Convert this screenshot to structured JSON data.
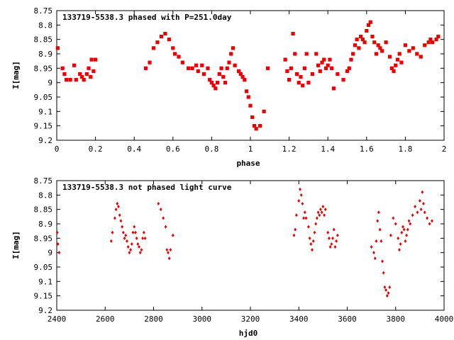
{
  "chart_data": [
    {
      "type": "scatter",
      "title": "133719-5538.3 phased with P=251.0day",
      "xlabel": "phase",
      "ylabel": "I[mag]",
      "xlim": [
        0,
        2
      ],
      "ylim": [
        8.75,
        9.2
      ],
      "y_inverted": true,
      "grid": false,
      "marker_color": "#ee0000",
      "x_ticks": [
        "0",
        "0.2",
        "0.4",
        "0.6",
        "0.8",
        "1",
        "1.2",
        "1.4",
        "1.6",
        "1.8",
        "2"
      ],
      "y_ticks": [
        "8.75",
        "8.8",
        "8.85",
        "8.9",
        "8.95",
        "9",
        "9.05",
        "9.1",
        "9.15",
        "9.2"
      ],
      "series": [
        {
          "x": [
            0.005,
            0.03,
            0.04,
            0.05,
            0.07,
            0.09,
            0.1,
            0.12,
            0.13,
            0.14,
            0.155,
            0.165,
            0.175,
            0.18,
            0.19,
            0.2,
            0.46,
            0.48,
            0.5,
            0.52,
            0.54,
            0.56,
            0.58,
            0.6,
            0.61,
            0.63,
            0.65,
            0.68,
            0.7,
            0.72,
            0.73,
            0.75,
            0.76,
            0.78,
            0.79,
            0.8,
            0.81,
            0.82,
            0.83,
            0.84,
            0.85,
            0.86,
            0.87,
            0.88,
            0.89,
            0.9,
            0.91,
            0.92,
            0.94,
            0.95,
            0.96,
            0.97,
            0.98,
            0.99,
            1.0,
            1.01,
            1.02,
            1.03,
            1.05,
            1.07,
            1.09,
            1.18,
            1.19,
            1.2,
            1.21,
            1.22,
            1.23,
            1.24,
            1.25,
            1.26,
            1.27,
            1.28,
            1.29,
            1.3,
            1.32,
            1.34,
            1.35,
            1.36,
            1.37,
            1.38,
            1.39,
            1.4,
            1.41,
            1.42,
            1.43,
            1.45,
            1.48,
            1.5,
            1.51,
            1.52,
            1.53,
            1.54,
            1.55,
            1.56,
            1.57,
            1.58,
            1.59,
            1.6,
            1.61,
            1.62,
            1.63,
            1.64,
            1.65,
            1.66,
            1.67,
            1.68,
            1.7,
            1.72,
            1.73,
            1.74,
            1.75,
            1.76,
            1.77,
            1.78,
            1.8,
            1.82,
            1.84,
            1.86,
            1.88,
            1.9,
            1.92,
            1.93,
            1.94,
            1.96,
            1.97
          ],
          "y": [
            8.88,
            8.95,
            8.97,
            8.99,
            8.99,
            8.94,
            8.99,
            8.97,
            8.98,
            8.99,
            8.97,
            8.95,
            8.98,
            8.92,
            8.96,
            8.92,
            8.95,
            8.93,
            8.88,
            8.86,
            8.84,
            8.83,
            8.85,
            8.88,
            8.9,
            8.91,
            8.93,
            8.95,
            8.95,
            8.94,
            8.96,
            8.94,
            8.97,
            8.95,
            8.99,
            9.0,
            9.01,
            9.02,
            9.0,
            8.97,
            8.95,
            8.98,
            9.0,
            8.95,
            8.93,
            8.9,
            8.88,
            8.94,
            8.96,
            8.97,
            8.98,
            8.99,
            9.03,
            9.05,
            9.08,
            9.12,
            9.15,
            9.16,
            9.15,
            9.1,
            8.95,
            8.92,
            8.96,
            8.99,
            8.95,
            8.83,
            8.9,
            8.97,
            9.0,
            8.98,
            9.01,
            8.95,
            8.9,
            9.0,
            8.97,
            8.9,
            8.94,
            8.96,
            8.93,
            8.92,
            8.95,
            8.94,
            8.92,
            8.95,
            9.02,
            8.97,
            8.99,
            8.96,
            8.95,
            8.92,
            8.9,
            8.87,
            8.85,
            8.88,
            8.84,
            8.85,
            8.86,
            8.82,
            8.8,
            8.79,
            8.84,
            8.86,
            8.9,
            8.87,
            8.88,
            8.89,
            8.86,
            8.91,
            8.95,
            8.96,
            8.94,
            8.92,
            8.9,
            8.93,
            8.87,
            8.89,
            8.88,
            8.9,
            8.91,
            8.87,
            8.86,
            8.85,
            8.86,
            8.85,
            8.84
          ]
        }
      ]
    },
    {
      "type": "scatter",
      "title": "133719-5538.3 not phased light curve",
      "xlabel": "hjd0",
      "ylabel": "I[mag]",
      "xlim": [
        2400,
        4000
      ],
      "ylim": [
        8.75,
        9.2
      ],
      "y_inverted": true,
      "grid": false,
      "marker_color": "#ee0000",
      "x_ticks": [
        "2400",
        "2600",
        "2800",
        "3000",
        "3200",
        "3400",
        "3600",
        "3800",
        "4000"
      ],
      "y_ticks": [
        "8.75",
        "8.8",
        "8.85",
        "8.9",
        "8.95",
        "9",
        "9.05",
        "9.1",
        "9.15",
        "9.2"
      ],
      "series": [
        {
          "x": [
            2402,
            2405,
            2410,
            2625,
            2630,
            2640,
            2645,
            2650,
            2655,
            2660,
            2665,
            2670,
            2675,
            2680,
            2685,
            2690,
            2695,
            2700,
            2705,
            2710,
            2715,
            2720,
            2725,
            2730,
            2735,
            2740,
            2745,
            2750,
            2755,
            2760,
            2765,
            2820,
            2830,
            2840,
            2850,
            2855,
            2860,
            2865,
            2870,
            2880,
            3380,
            3385,
            3390,
            3400,
            3405,
            3410,
            3415,
            3420,
            3425,
            3430,
            3440,
            3445,
            3450,
            3455,
            3460,
            3465,
            3470,
            3475,
            3480,
            3485,
            3490,
            3495,
            3500,
            3505,
            3510,
            3520,
            3525,
            3530,
            3535,
            3540,
            3545,
            3550,
            3555,
            3560,
            3700,
            3710,
            3715,
            3720,
            3725,
            3730,
            3735,
            3740,
            3745,
            3750,
            3755,
            3760,
            3765,
            3770,
            3775,
            3780,
            3790,
            3800,
            3810,
            3815,
            3820,
            3825,
            3830,
            3835,
            3840,
            3845,
            3850,
            3855,
            3860,
            3870,
            3880,
            3890,
            3900,
            3905,
            3910,
            3915,
            3920,
            3930,
            3940,
            3950
          ],
          "y": [
            8.93,
            8.97,
            9.0,
            8.96,
            8.93,
            8.88,
            8.85,
            8.83,
            8.84,
            8.87,
            8.89,
            8.91,
            8.93,
            8.95,
            8.94,
            8.96,
            8.98,
            9.0,
            8.99,
            8.97,
            8.93,
            8.91,
            8.93,
            8.95,
            8.97,
            8.98,
            9.0,
            8.99,
            8.95,
            8.93,
            8.95,
            8.83,
            8.85,
            8.88,
            8.91,
            8.99,
            9.0,
            9.02,
            8.99,
            8.94,
            8.94,
            8.92,
            8.87,
            8.82,
            8.78,
            8.8,
            8.83,
            8.88,
            8.86,
            8.88,
            8.91,
            8.95,
            8.97,
            8.99,
            8.96,
            8.93,
            8.9,
            8.88,
            8.86,
            8.87,
            8.85,
            8.86,
            8.84,
            8.87,
            8.85,
            8.93,
            8.95,
            8.98,
            8.97,
            8.95,
            8.92,
            8.98,
            8.96,
            8.94,
            8.98,
            9.0,
            9.02,
            8.96,
            8.89,
            8.86,
            8.92,
            8.96,
            9.03,
            9.07,
            9.12,
            9.13,
            9.15,
            9.14,
            9.12,
            8.94,
            8.88,
            8.9,
            8.95,
            8.99,
            8.97,
            8.93,
            8.91,
            8.92,
            8.96,
            8.94,
            8.92,
            8.89,
            8.9,
            8.87,
            8.84,
            8.86,
            8.82,
            8.85,
            8.79,
            8.83,
            8.86,
            8.88,
            8.9,
            8.89
          ]
        }
      ]
    }
  ]
}
